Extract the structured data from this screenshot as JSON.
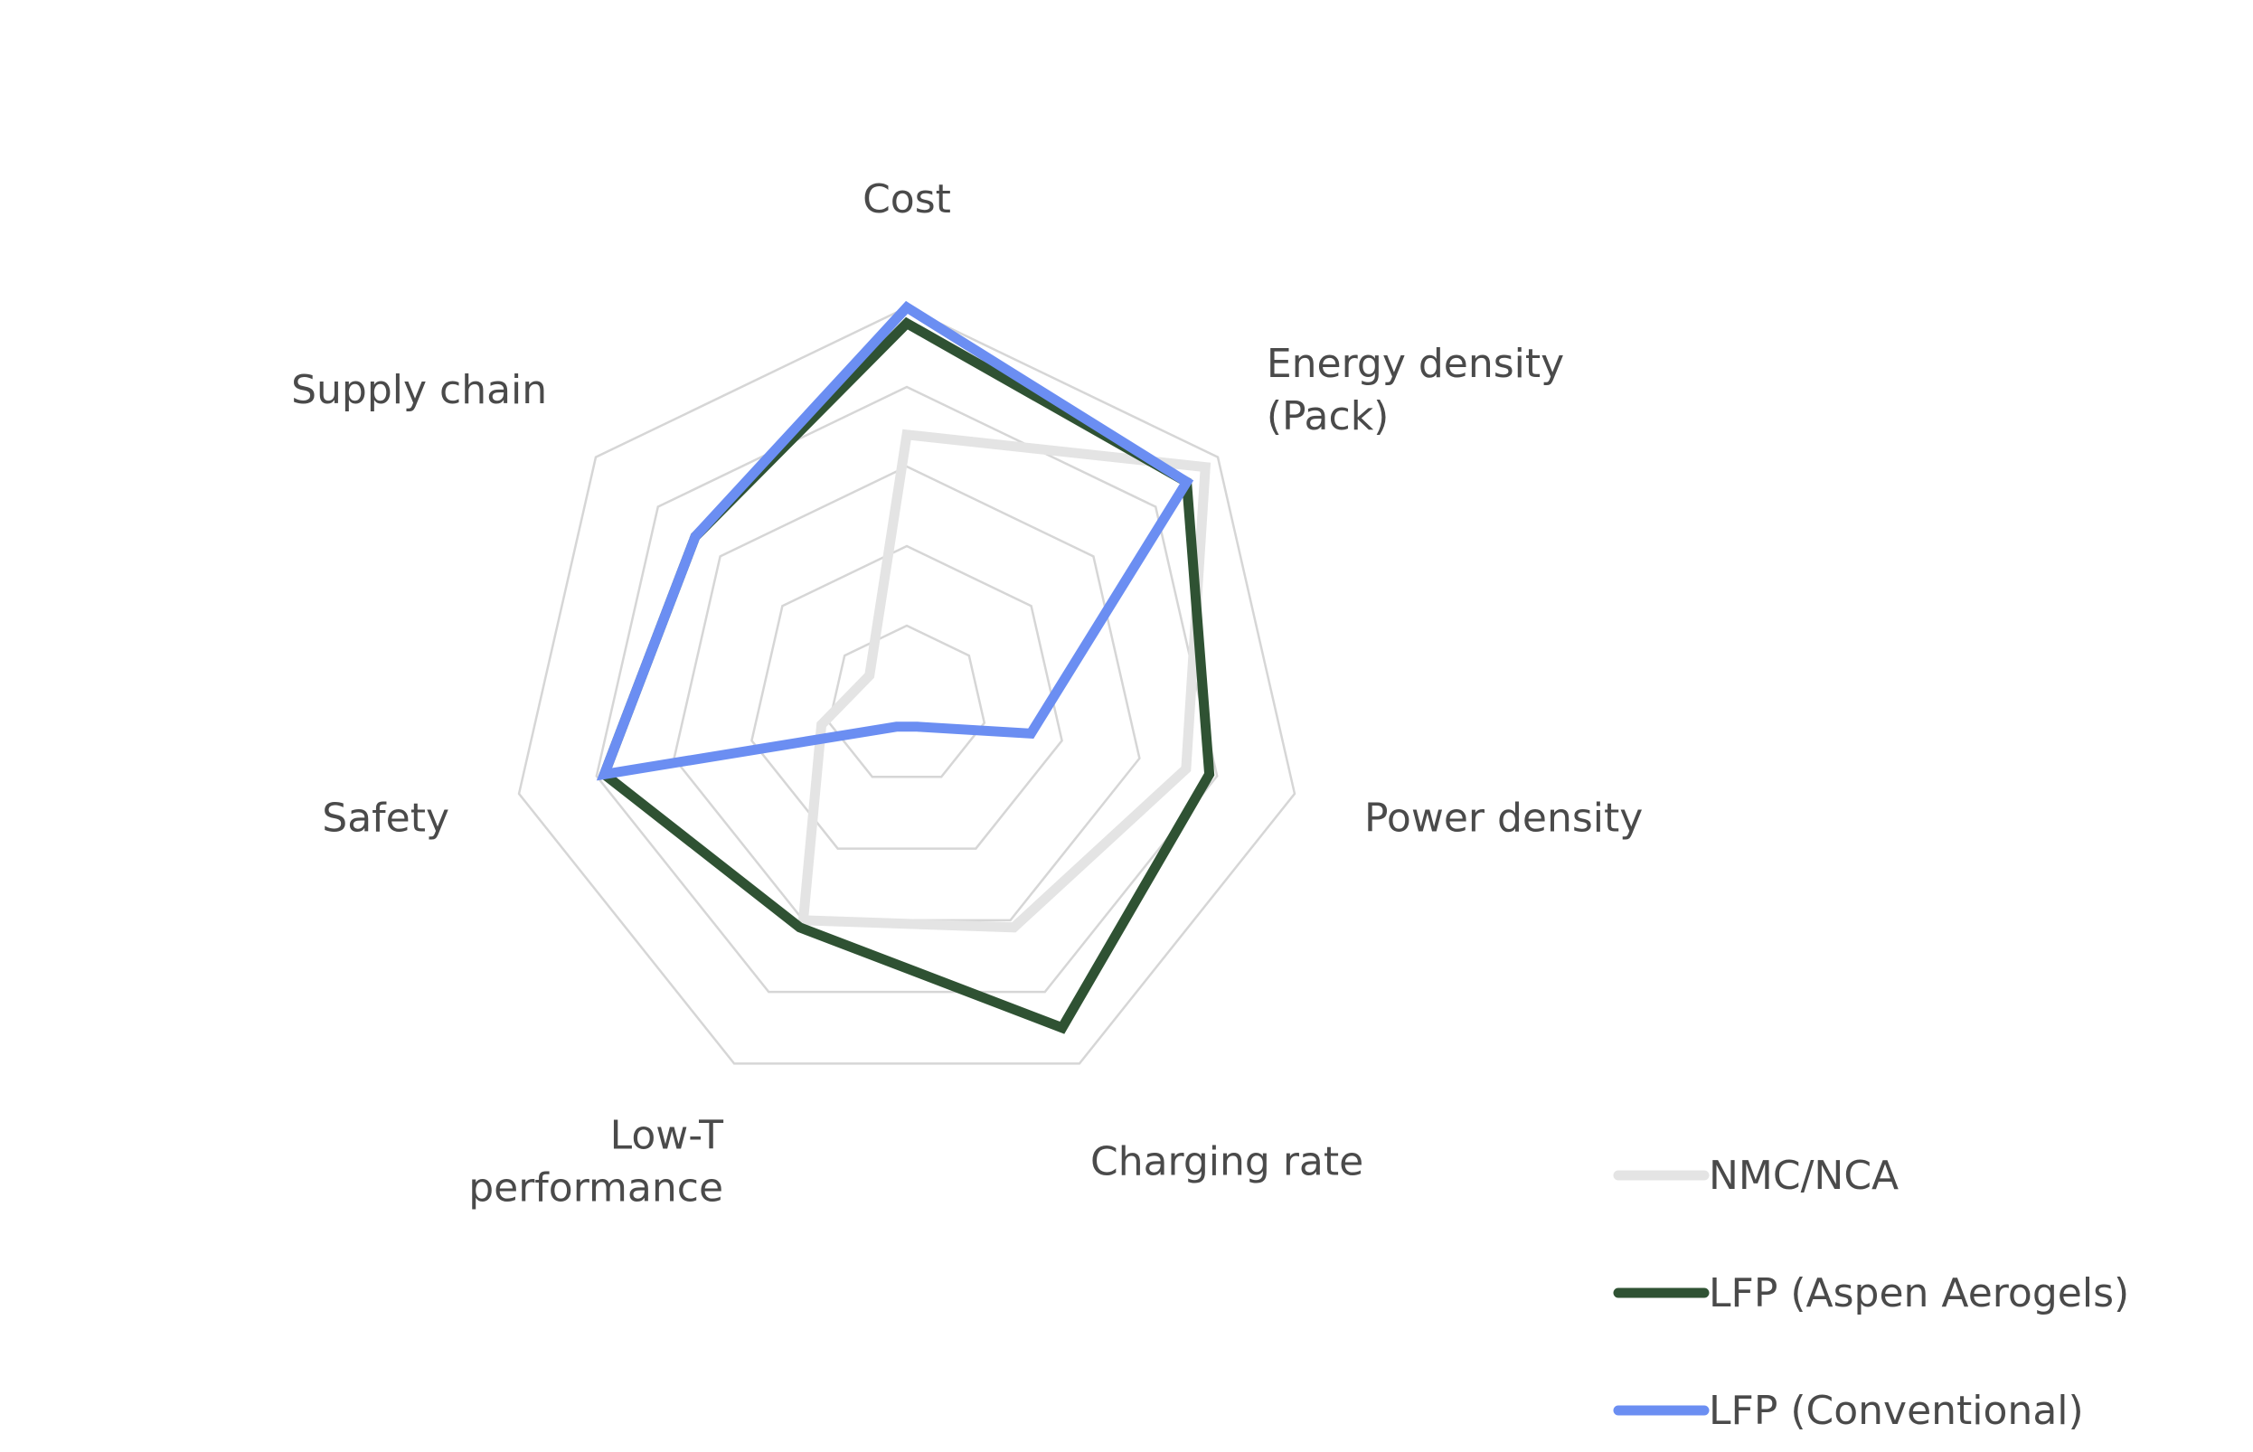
{
  "chart_data": {
    "type": "radar",
    "title": "",
    "axes": [
      [
        "Cost"
      ],
      [
        "Energy density",
        "(Pack)"
      ],
      [
        "Power density"
      ],
      [
        "Charging rate"
      ],
      [
        "Low-T",
        "performance"
      ],
      [
        "Safety"
      ],
      [
        "Supply chain"
      ]
    ],
    "range": [
      0,
      5
    ],
    "rings": 5,
    "grid": true,
    "legend_position": "bottom-right",
    "series": [
      {
        "name": "NMC/NCA",
        "color": "#e4e4e4",
        "values": [
          3.4,
          4.8,
          3.6,
          3.1,
          3.0,
          1.1,
          0.6
        ]
      },
      {
        "name": "LFP (Aspen Aerogels)",
        "color": "#2f5233",
        "values": [
          4.8,
          4.5,
          3.9,
          4.5,
          3.1,
          3.9,
          3.4
        ]
      },
      {
        "name": "LFP (Conventional)",
        "color": "#6b8ef2",
        "values": [
          5.0,
          4.5,
          1.6,
          0.3,
          0.3,
          3.9,
          3.4
        ]
      }
    ]
  }
}
